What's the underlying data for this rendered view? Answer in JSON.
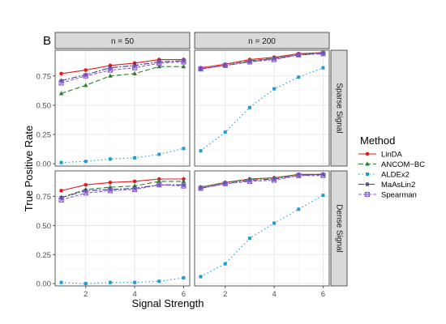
{
  "panel_tag": "B",
  "chart_data": {
    "type": "line",
    "xlabel": "Signal Strength",
    "ylabel": "True Positive Rate",
    "xlim": [
      0.75,
      6.25
    ],
    "ylim": [
      -0.02,
      0.97
    ],
    "x_ticks": [
      2,
      4,
      6
    ],
    "y_ticks": [
      0.0,
      0.25,
      0.5,
      0.75
    ],
    "y_tick_labels": [
      "0.00",
      "0.25",
      "0.50",
      "0.75"
    ],
    "grid": true,
    "legend_position": "right",
    "legend_title": "Method",
    "col_strips": [
      "n = 50",
      "n = 200"
    ],
    "row_strips": [
      "Sparse Signal",
      "Dense Signal"
    ],
    "x": [
      1,
      2,
      3,
      4,
      5,
      6
    ],
    "methods": [
      {
        "name": "LinDA",
        "color": "#e41a1c",
        "marker": "circle",
        "dash": "none"
      },
      {
        "name": "ANCOM−BC",
        "color": "#2e7d32",
        "marker": "triangle",
        "dash": "6,3"
      },
      {
        "name": "ALDEx2",
        "color": "#1f9bcf",
        "marker": "square",
        "dash": "1.5,3"
      },
      {
        "name": "MaAsLin2",
        "color": "#3f3f8f",
        "marker": "star",
        "dash": "7,2,2,2"
      },
      {
        "name": "Spearman",
        "color": "#8a5cd6",
        "marker": "boxsq",
        "dash": "4,2"
      }
    ],
    "panels": [
      {
        "row": 0,
        "col": 0,
        "values": {
          "LinDA": [
            0.77,
            0.8,
            0.84,
            0.86,
            0.89,
            0.89
          ],
          "ANCOM−BC": [
            0.6,
            0.67,
            0.75,
            0.77,
            0.83,
            0.83
          ],
          "ALDEx2": [
            0.01,
            0.02,
            0.04,
            0.05,
            0.08,
            0.13
          ],
          "MaAsLin2": [
            0.71,
            0.76,
            0.82,
            0.84,
            0.87,
            0.88
          ],
          "Spearman": [
            0.69,
            0.75,
            0.8,
            0.82,
            0.86,
            0.87
          ]
        }
      },
      {
        "row": 0,
        "col": 1,
        "values": {
          "LinDA": [
            0.82,
            0.85,
            0.89,
            0.91,
            0.94,
            0.95
          ],
          "ANCOM−BC": [
            0.81,
            0.84,
            0.88,
            0.9,
            0.93,
            0.95
          ],
          "ALDEx2": [
            0.11,
            0.27,
            0.48,
            0.64,
            0.74,
            0.82
          ],
          "MaAsLin2": [
            0.81,
            0.84,
            0.87,
            0.9,
            0.93,
            0.94
          ],
          "Spearman": [
            0.81,
            0.84,
            0.87,
            0.89,
            0.93,
            0.94
          ]
        }
      },
      {
        "row": 1,
        "col": 0,
        "values": {
          "LinDA": [
            0.8,
            0.85,
            0.87,
            0.88,
            0.9,
            0.9
          ],
          "ANCOM−BC": [
            0.74,
            0.81,
            0.83,
            0.84,
            0.88,
            0.88
          ],
          "ALDEx2": [
            0.01,
            0.0,
            0.01,
            0.01,
            0.02,
            0.05
          ],
          "MaAsLin2": [
            0.74,
            0.8,
            0.81,
            0.82,
            0.85,
            0.85
          ],
          "Spearman": [
            0.72,
            0.78,
            0.8,
            0.81,
            0.85,
            0.84
          ]
        }
      },
      {
        "row": 1,
        "col": 1,
        "values": {
          "LinDA": [
            0.83,
            0.87,
            0.9,
            0.91,
            0.94,
            0.94
          ],
          "ANCOM−BC": [
            0.83,
            0.87,
            0.9,
            0.91,
            0.94,
            0.94
          ],
          "ALDEx2": [
            0.06,
            0.17,
            0.39,
            0.52,
            0.64,
            0.76
          ],
          "MaAsLin2": [
            0.82,
            0.86,
            0.89,
            0.9,
            0.93,
            0.94
          ],
          "Spearman": [
            0.82,
            0.86,
            0.88,
            0.89,
            0.93,
            0.93
          ]
        }
      }
    ]
  }
}
